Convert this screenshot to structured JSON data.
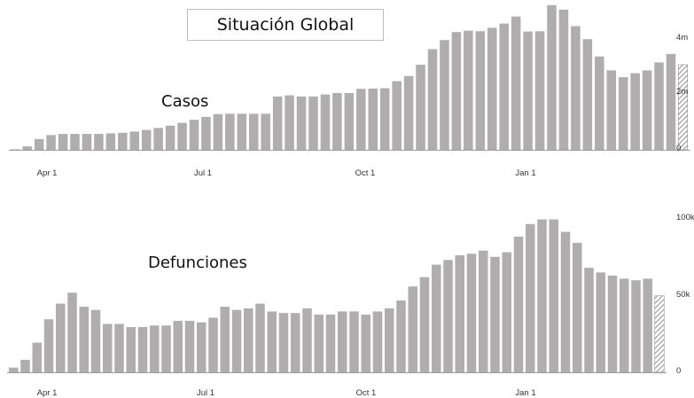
{
  "title": "Situación Global",
  "colors": {
    "bar": "#afadad",
    "baseline": "#9c9c9c",
    "hatch": "#8f8f8f"
  },
  "chart_data": [
    {
      "type": "bar",
      "title": "Casos",
      "x_tick_labels": [
        "Apr 1",
        "Jul 1",
        "Oct 1",
        "Jan 1"
      ],
      "y_tick_labels": [
        "0",
        "2m",
        "4m"
      ],
      "y_ticks": [
        0,
        2000000,
        4000000
      ],
      "ylim": [
        0,
        5000000
      ],
      "last_bar_partial": true,
      "values": [
        20000,
        120000,
        380000,
        520000,
        560000,
        560000,
        560000,
        560000,
        580000,
        600000,
        640000,
        700000,
        770000,
        850000,
        950000,
        1060000,
        1160000,
        1260000,
        1270000,
        1270000,
        1270000,
        1270000,
        1880000,
        1920000,
        1880000,
        1880000,
        1950000,
        2000000,
        2000000,
        2150000,
        2160000,
        2170000,
        2420000,
        2600000,
        3000000,
        3550000,
        3870000,
        4150000,
        4200000,
        4180000,
        4300000,
        4450000,
        4700000,
        4170000,
        4180000,
        5100000,
        4940000,
        4360000,
        3900000,
        3290000,
        2800000,
        2560000,
        2700000,
        2800000,
        3080000,
        3380000,
        3000000
      ]
    },
    {
      "type": "bar",
      "title": "Defunciones",
      "x_tick_labels": [
        "Apr 1",
        "Jul 1",
        "Oct 1",
        "Jan 1"
      ],
      "y_tick_labels": [
        "0",
        "50k",
        "100k"
      ],
      "y_ticks": [
        0,
        50000,
        100000
      ],
      "ylim": [
        0,
        100000
      ],
      "last_bar_partial": true,
      "values": [
        3000,
        8000,
        19000,
        34000,
        44000,
        51000,
        42000,
        40000,
        31000,
        31000,
        29000,
        29000,
        30000,
        30000,
        33000,
        33000,
        32000,
        35000,
        42000,
        40000,
        41000,
        44000,
        39000,
        38000,
        38000,
        41000,
        37000,
        37000,
        39000,
        39000,
        37000,
        39000,
        41000,
        46000,
        55000,
        61000,
        69000,
        72000,
        75000,
        76000,
        78000,
        74000,
        77000,
        87000,
        95000,
        98000,
        98000,
        90000,
        83000,
        67000,
        64000,
        62000,
        60000,
        59000,
        60000,
        49000
      ]
    }
  ]
}
